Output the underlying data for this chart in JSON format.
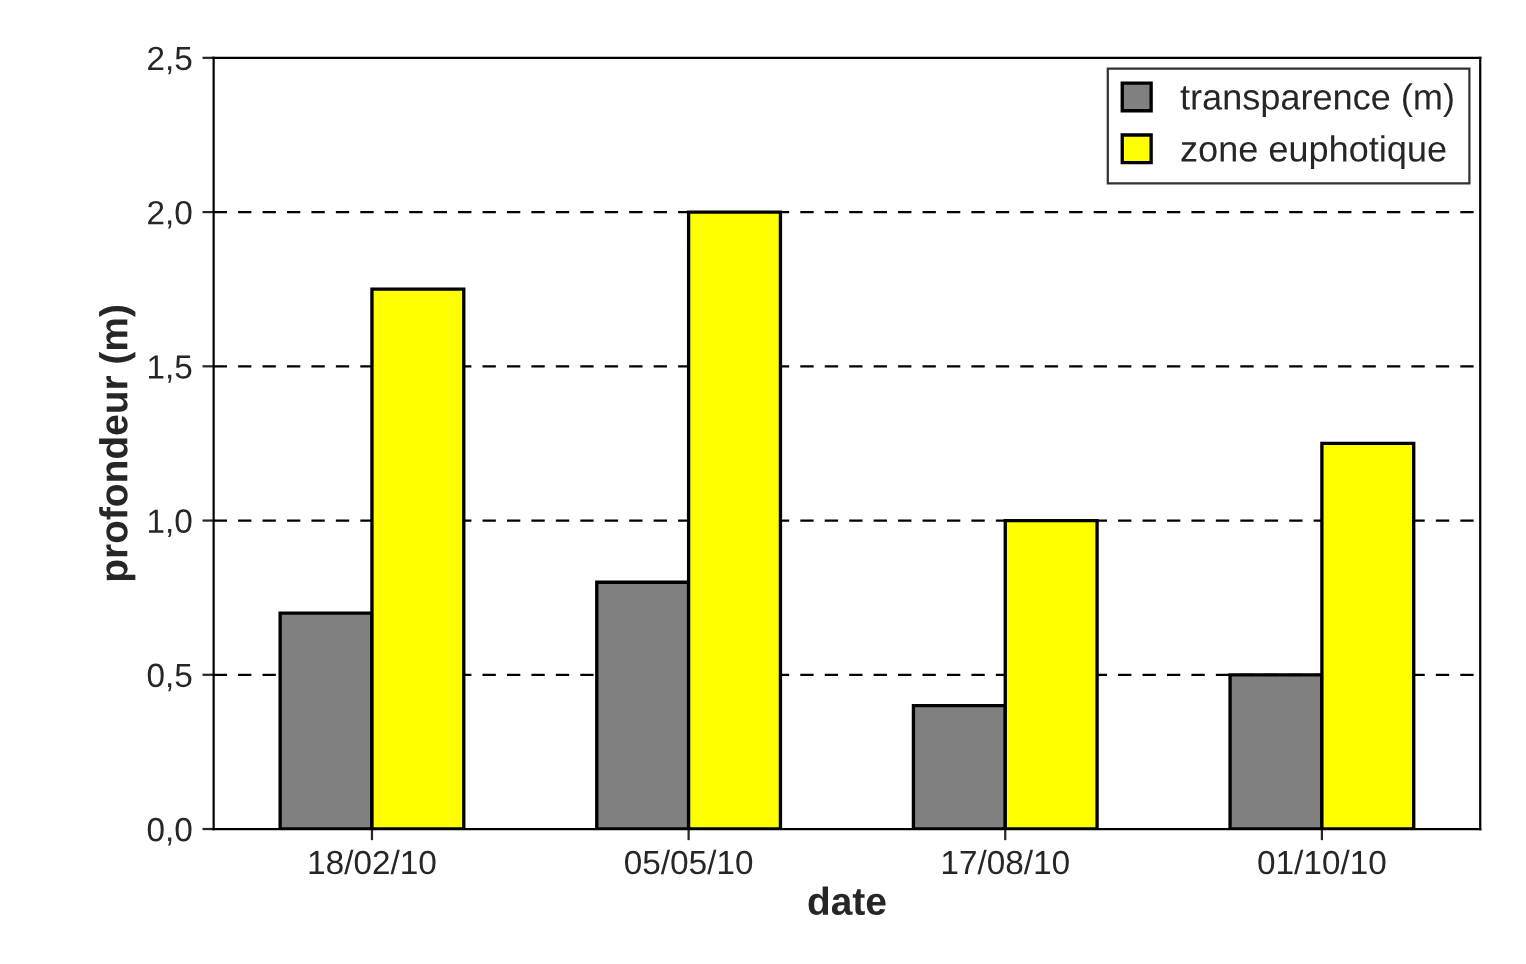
{
  "chart_data": {
    "type": "bar",
    "xlabel": "date",
    "ylabel": "profondeur (m)",
    "categories": [
      "18/02/10",
      "05/05/10",
      "17/08/10",
      "01/10/10"
    ],
    "series": [
      {
        "name": "transparence (m)",
        "color": "#808080",
        "values": [
          0.7,
          0.8,
          0.4,
          0.5
        ]
      },
      {
        "name": "zone euphotique",
        "color": "#ffff00",
        "values": [
          1.75,
          2.0,
          1.0,
          1.25
        ]
      }
    ],
    "ylim": [
      0,
      2.5
    ],
    "yticks": [
      {
        "value": 0,
        "label": "0,0"
      },
      {
        "value": 0.5,
        "label": "0,5"
      },
      {
        "value": 1.0,
        "label": "1,0"
      },
      {
        "value": 1.5,
        "label": "1,5"
      },
      {
        "value": 2.0,
        "label": "2,0"
      },
      {
        "value": 2.5,
        "label": "2,5"
      }
    ],
    "grid": "y",
    "legend": "top right"
  }
}
